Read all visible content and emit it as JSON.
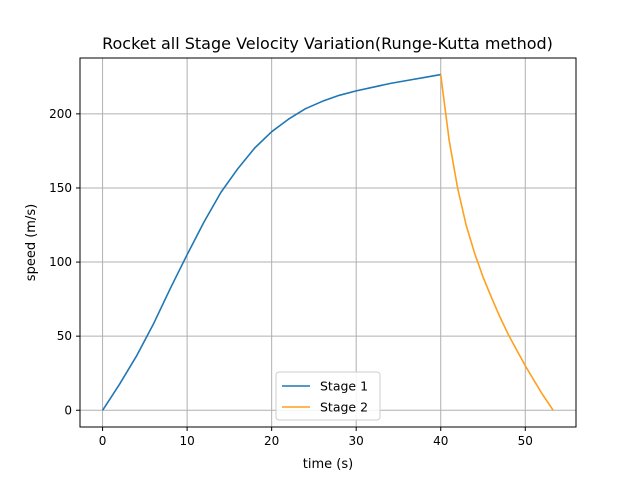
{
  "chart_data": {
    "type": "line",
    "title": "Rocket all Stage Velocity Variation(Runge-Kutta method)",
    "xlabel": "time (s)",
    "ylabel": "speed (m/s)",
    "xlim": [
      -2.67,
      56.0
    ],
    "ylim": [
      -11.3,
      237.7
    ],
    "xticks": [
      0,
      10,
      20,
      30,
      40,
      50
    ],
    "yticks": [
      0,
      50,
      100,
      150,
      200
    ],
    "grid": true,
    "legend_position": "lower center",
    "series": [
      {
        "name": "Stage 1",
        "color": "#1f77b4",
        "x": [
          0,
          2,
          4,
          6,
          8,
          10,
          12,
          14,
          16,
          18,
          20,
          22,
          24,
          26,
          28,
          30,
          32,
          34,
          36,
          38,
          40
        ],
        "y": [
          0,
          17.5,
          36.5,
          58,
          82,
          105,
          127,
          147,
          163,
          177,
          188,
          196.5,
          203.5,
          208.5,
          212.5,
          215.5,
          218,
          220.5,
          222.5,
          224.5,
          226.5
        ]
      },
      {
        "name": "Stage 2",
        "color": "#ff9f1c",
        "x": [
          40,
          41,
          42,
          43,
          44,
          45,
          46,
          47,
          48,
          49,
          50,
          51,
          52,
          53.3
        ],
        "y": [
          226.5,
          182,
          150,
          125,
          106,
          90,
          76,
          63,
          51,
          40.5,
          30,
          20.5,
          11,
          0
        ]
      }
    ]
  }
}
